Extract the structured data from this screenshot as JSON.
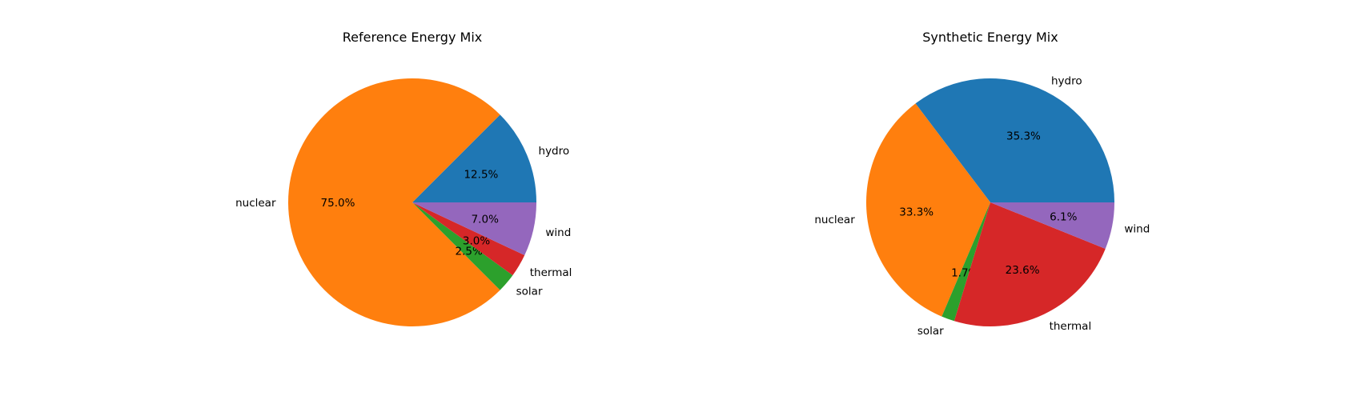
{
  "chart_data": [
    {
      "type": "pie",
      "title": "Reference Energy Mix",
      "categories": [
        "hydro",
        "nuclear",
        "solar",
        "thermal",
        "wind"
      ],
      "values": [
        12.5,
        75.0,
        2.5,
        3.0,
        7.0
      ],
      "percent_labels": [
        "12.5%",
        "75.0%",
        "2.5%",
        "3.0%",
        "7.0%"
      ],
      "colors": [
        "#1f77b4",
        "#ff7f0e",
        "#2ca02c",
        "#d62728",
        "#9467bd"
      ],
      "start_angle": 0,
      "direction": "counterclockwise"
    },
    {
      "type": "pie",
      "title": "Synthetic Energy Mix",
      "categories": [
        "hydro",
        "nuclear",
        "solar",
        "thermal",
        "wind"
      ],
      "values": [
        35.3,
        33.3,
        1.7,
        23.6,
        6.1
      ],
      "percent_labels": [
        "35.3%",
        "33.3%",
        "1.7%",
        "23.6%",
        "6.1%"
      ],
      "colors": [
        "#1f77b4",
        "#ff7f0e",
        "#2ca02c",
        "#d62728",
        "#9467bd"
      ],
      "start_angle": 0,
      "direction": "counterclockwise"
    }
  ]
}
